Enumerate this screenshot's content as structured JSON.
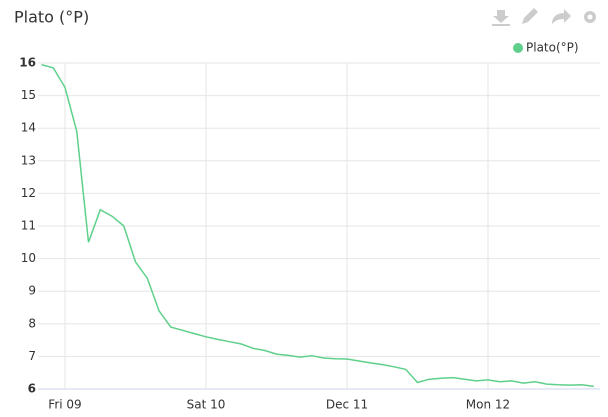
{
  "chart_data": {
    "type": "line",
    "title": "Plato (°P)",
    "categories": [
      null,
      null,
      "Fri 09",
      null,
      null,
      null,
      null,
      null,
      null,
      null,
      null,
      null,
      null,
      null,
      "Sat 10",
      null,
      null,
      null,
      null,
      null,
      null,
      null,
      null,
      null,
      null,
      null,
      "Dec 11",
      null,
      null,
      null,
      null,
      null,
      null,
      null,
      null,
      null,
      null,
      null,
      "Mon 12",
      null,
      null,
      null,
      null,
      null,
      null,
      null,
      null,
      null
    ],
    "series": [
      {
        "name": "Plato(°P)",
        "color": "#5fd08b",
        "values": [
          15.95,
          15.85,
          15.25,
          13.9,
          10.5,
          11.5,
          11.3,
          11.0,
          9.9,
          9.4,
          8.4,
          7.9,
          7.8,
          7.7,
          7.6,
          7.52,
          7.45,
          7.38,
          7.25,
          7.18,
          7.07,
          7.03,
          6.98,
          7.02,
          6.95,
          6.93,
          6.92,
          6.86,
          6.8,
          6.75,
          6.68,
          6.6,
          6.2,
          6.3,
          6.33,
          6.35,
          6.3,
          6.25,
          6.28,
          6.22,
          6.25,
          6.18,
          6.22,
          6.15,
          6.13,
          6.12,
          6.13,
          6.08
        ]
      }
    ],
    "ylim": [
      6,
      16
    ],
    "yticks": [
      6,
      7,
      8,
      9,
      10,
      11,
      12,
      13,
      14,
      15,
      16
    ],
    "grid": true,
    "legend": "top-right"
  }
}
